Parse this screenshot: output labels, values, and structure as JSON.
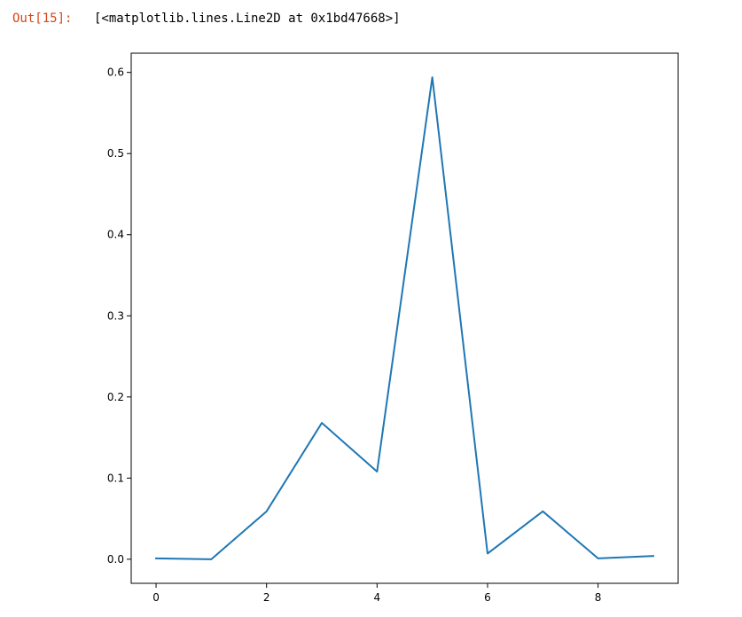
{
  "output": {
    "prompt": "Out[15]:",
    "text": "[<matplotlib.lines.Line2D at 0x1bd47668>]"
  },
  "colors": {
    "line": "#1f77b4",
    "prompt": "#d84315",
    "axes": "#000000"
  },
  "chart_data": {
    "type": "line",
    "title": "",
    "xlabel": "",
    "ylabel": "",
    "x": [
      0,
      1,
      2,
      3,
      4,
      5,
      6,
      7,
      8,
      9
    ],
    "series": [
      {
        "values": [
          0.001,
          0.0,
          0.059,
          0.168,
          0.108,
          0.594,
          0.007,
          0.059,
          0.001,
          0.004
        ]
      }
    ],
    "xlim": [
      -0.45,
      9.45
    ],
    "ylim": [
      -0.0297,
      0.6237
    ],
    "xticks": [
      0,
      2,
      4,
      6,
      8
    ],
    "xtick_labels": [
      "0",
      "2",
      "4",
      "6",
      "8"
    ],
    "yticks": [
      0.0,
      0.1,
      0.2,
      0.3,
      0.4,
      0.5,
      0.6
    ],
    "ytick_labels": [
      "0.0",
      "0.1",
      "0.2",
      "0.3",
      "0.4",
      "0.5",
      "0.6"
    ],
    "grid": false,
    "legend": "none"
  }
}
